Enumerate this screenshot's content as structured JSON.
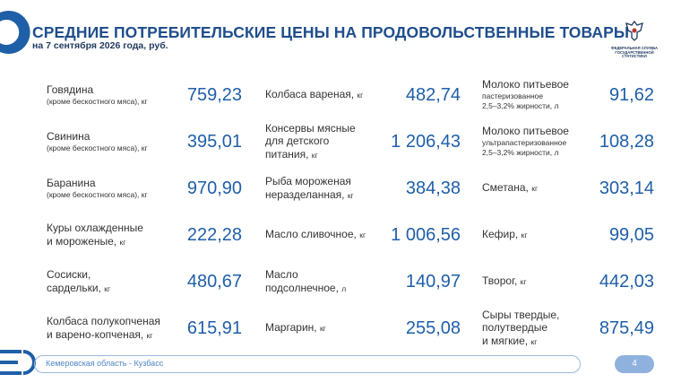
{
  "header": {
    "title": "СРЕДНИЕ ПОТРЕБИТЕЛЬСКИЕ ЦЕНЫ НА ПРОДОВОЛЬСТВЕННЫЕ ТОВАРЫ",
    "subtitle": "на 7 сентября 2026 года, руб.",
    "logo_text": [
      "ФЕДЕРАЛЬНАЯ СЛУЖБА",
      "ГОСУДАРСТВЕННОЙ",
      "СТАТИСТИКИ"
    ]
  },
  "columns": [
    [
      {
        "name": [
          "Говядина"
        ],
        "note": [
          "(кроме бескостного мяса),"
        ],
        "unit": "кг",
        "price": "759,23"
      },
      {
        "name": [
          "Свинина"
        ],
        "note": [
          "(кроме бескостного мяса),"
        ],
        "unit": "кг",
        "price": "395,01"
      },
      {
        "name": [
          "Баранина"
        ],
        "note": [
          "(кроме бескостного мяса),"
        ],
        "unit": "кг",
        "price": "970,90"
      },
      {
        "name": [
          "Куры охлажденные",
          "и мороженые,"
        ],
        "unit": "кг",
        "price": "222,28"
      },
      {
        "name": [
          "Сосиски,",
          "сардельки,"
        ],
        "unit": "кг",
        "price": "480,67"
      },
      {
        "name": [
          "Колбаса полукопченая",
          "и варено-копченая,"
        ],
        "unit": "кг",
        "price": "615,91"
      }
    ],
    [
      {
        "name": [
          "Колбаса вареная,"
        ],
        "unit": "кг",
        "price": "482,74"
      },
      {
        "name": [
          "Консервы мясные",
          "для детского",
          "питания,"
        ],
        "unit": "кг",
        "price": "1 206,43"
      },
      {
        "name": [
          "Рыба мороженая",
          "неразделанная,"
        ],
        "unit": "кг",
        "price": "384,38"
      },
      {
        "name": [
          "Масло сливочное,"
        ],
        "unit": "кг",
        "price": "1 006,56"
      },
      {
        "name": [
          "Масло",
          "подсолнечное,"
        ],
        "unit": "л",
        "price": "140,97"
      },
      {
        "name": [
          "Маргарин,"
        ],
        "unit": "кг",
        "price": "255,08"
      }
    ],
    [
      {
        "name": [
          "Молоко питьевое"
        ],
        "note": [
          "пастеризованное",
          "2,5–3,2% жирности,"
        ],
        "unit": "л",
        "price": "91,62"
      },
      {
        "name": [
          "Молоко питьевое"
        ],
        "note": [
          "ультрапастеризованное",
          "2,5–3,2% жирности,"
        ],
        "unit": "л",
        "price": "108,28"
      },
      {
        "name": [
          "Сметана,"
        ],
        "unit": "кг",
        "price": "303,14"
      },
      {
        "name": [
          "Кефир,"
        ],
        "unit": "кг",
        "price": "99,05"
      },
      {
        "name": [
          "Творог,"
        ],
        "unit": "кг",
        "price": "442,03"
      },
      {
        "name": [
          "Сыры твердые,",
          "полутвердые",
          "и мягкие,"
        ],
        "unit": "кг",
        "price": "875,49"
      }
    ]
  ],
  "footer": {
    "region": "Кемеровская область - Кузбасс",
    "page": "4"
  }
}
